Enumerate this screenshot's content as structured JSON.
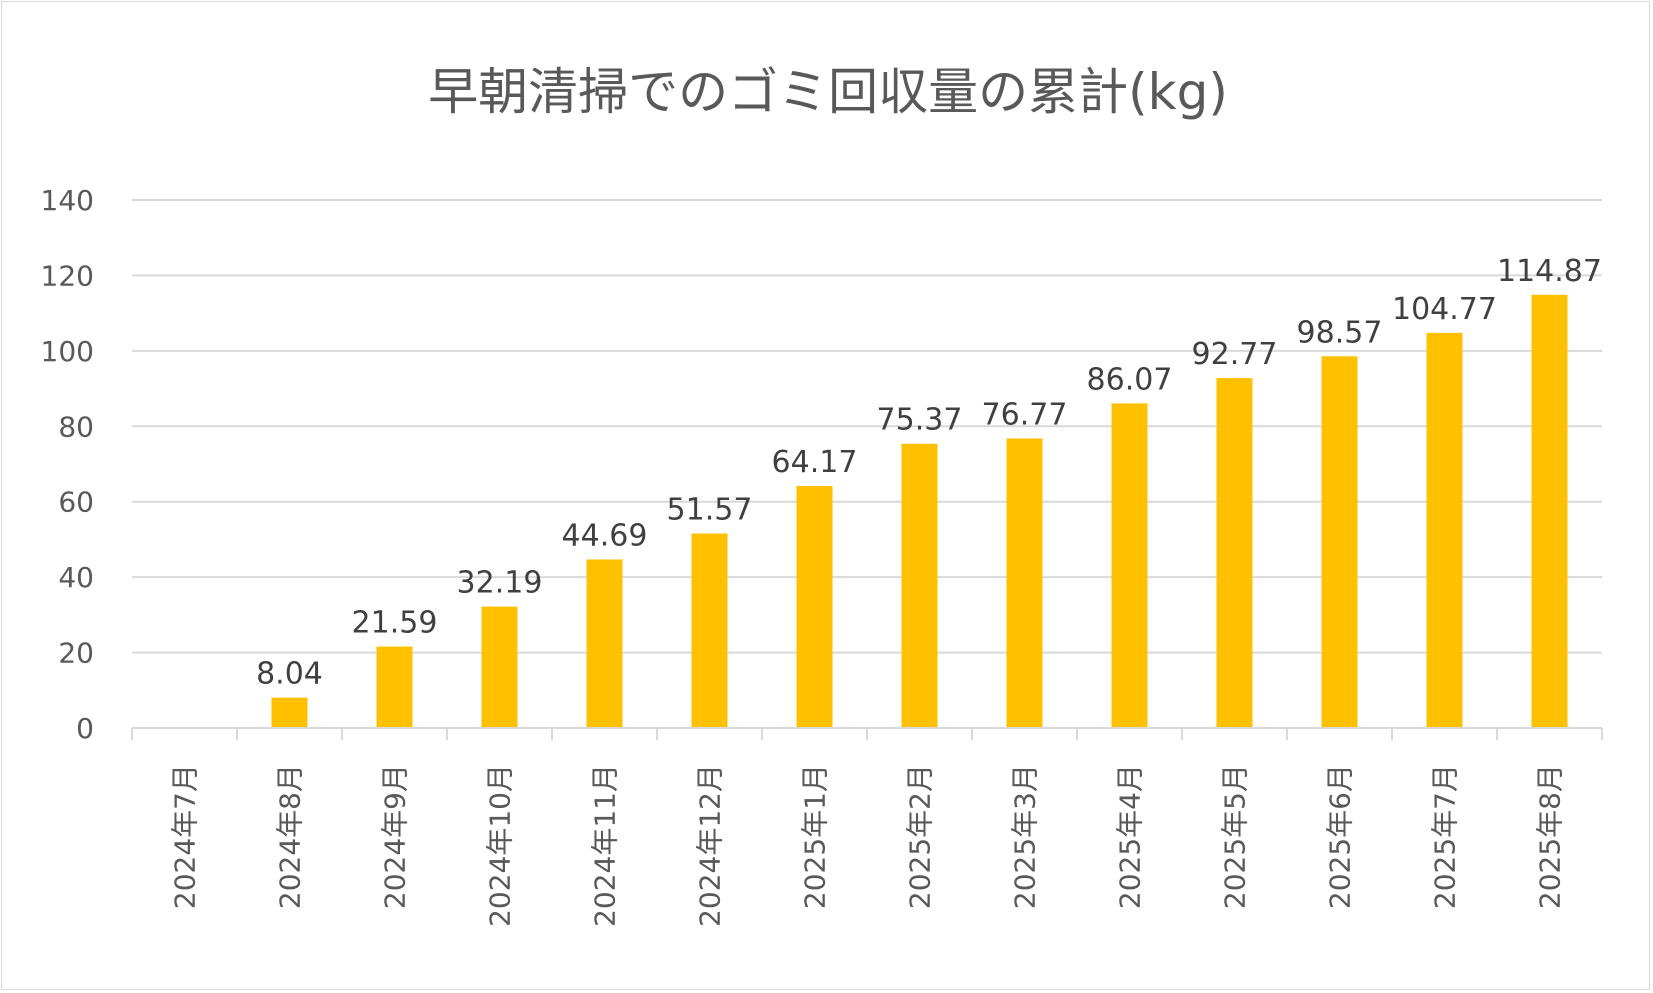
{
  "chart_data": {
    "type": "bar",
    "title": "早朝清掃でのゴミ回収量の累計(kg)",
    "xlabel": "",
    "ylabel": "",
    "categories": [
      "2024年7月",
      "2024年8月",
      "2024年9月",
      "2024年10月",
      "2024年11月",
      "2024年12月",
      "2025年1月",
      "2025年2月",
      "2025年3月",
      "2025年4月",
      "2025年5月",
      "2025年6月",
      "2025年7月",
      "2025年8月"
    ],
    "values": [
      0,
      8.04,
      21.59,
      32.19,
      44.69,
      51.57,
      64.17,
      75.37,
      76.77,
      86.07,
      92.77,
      98.57,
      104.77,
      114.87
    ],
    "data_labels": [
      "",
      "8.04",
      "21.59",
      "32.19",
      "44.69",
      "51.57",
      "64.17",
      "75.37",
      "76.77",
      "86.07",
      "92.77",
      "98.57",
      "104.77",
      "114.87"
    ],
    "ylim": [
      0,
      140
    ],
    "yticks": [
      0,
      20,
      40,
      60,
      80,
      100,
      120,
      140
    ],
    "ytick_labels": [
      "0",
      "20",
      "40",
      "60",
      "80",
      "100",
      "120",
      "140"
    ],
    "grid": true,
    "legend": "none",
    "colors": {
      "bar": "#FFC000",
      "grid": "#d9d9d9",
      "axis": "#d9d9d9",
      "text": "#595959",
      "data_label": "#404040"
    }
  }
}
